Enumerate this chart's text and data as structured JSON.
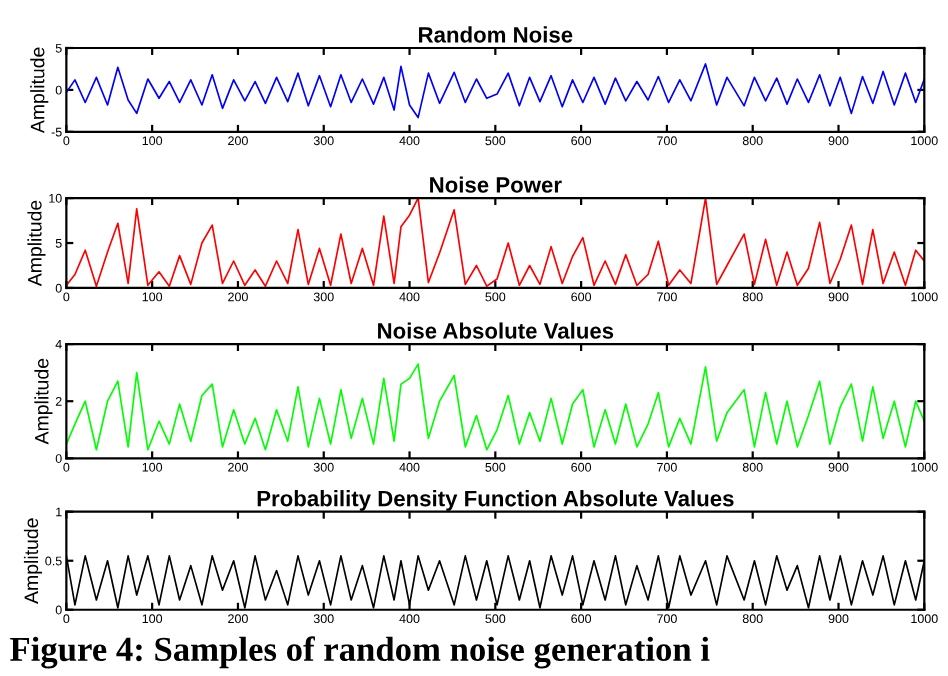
{
  "chart_data": [
    {
      "type": "line",
      "title": "Random Noise",
      "ylabel": "Amplitude",
      "xlim": [
        0,
        1000
      ],
      "xticks": [
        0,
        100,
        200,
        300,
        400,
        500,
        600,
        700,
        800,
        900,
        1000
      ],
      "ylim": [
        -5,
        5
      ],
      "yticks": [
        -5,
        0,
        5
      ],
      "legend": false,
      "x": [
        0,
        10,
        22,
        35,
        48,
        60,
        72,
        82,
        95,
        108,
        120,
        132,
        145,
        158,
        170,
        182,
        195,
        208,
        220,
        232,
        245,
        258,
        270,
        282,
        295,
        308,
        320,
        332,
        345,
        358,
        370,
        382,
        390,
        400,
        410,
        422,
        435,
        452,
        465,
        478,
        490,
        502,
        515,
        528,
        540,
        552,
        565,
        578,
        590,
        602,
        615,
        628,
        640,
        652,
        665,
        678,
        690,
        702,
        715,
        728,
        745,
        758,
        770,
        790,
        802,
        815,
        828,
        840,
        852,
        865,
        878,
        890,
        902,
        915,
        928,
        940,
        952,
        965,
        978,
        990,
        1000
      ],
      "series": [
        {
          "color": "#0000ff",
          "values": [
            -0.3,
            1.2,
            -1.5,
            1.5,
            -1.8,
            2.7,
            -1.2,
            -2.8,
            1.3,
            -1.0,
            1.0,
            -1.5,
            1.2,
            -1.8,
            1.8,
            -2.2,
            1.2,
            -1.3,
            1.0,
            -1.6,
            1.5,
            -1.4,
            2.0,
            -1.9,
            1.7,
            -2.0,
            1.8,
            -1.5,
            1.3,
            -1.7,
            1.5,
            -2.4,
            2.8,
            -1.8,
            -3.3,
            2.0,
            -1.6,
            2.1,
            -1.5,
            1.3,
            -1.0,
            -0.5,
            2.0,
            -1.9,
            1.5,
            -1.4,
            1.7,
            -2.0,
            1.2,
            -1.5,
            1.5,
            -1.7,
            1.4,
            -1.3,
            1.0,
            -1.2,
            1.6,
            -1.5,
            1.2,
            -1.3,
            3.1,
            -1.8,
            1.5,
            -1.9,
            1.5,
            -1.3,
            1.4,
            -1.7,
            1.3,
            -1.5,
            1.8,
            -1.9,
            1.5,
            -2.8,
            1.6,
            -1.6,
            2.2,
            -1.8,
            2.0,
            -1.5,
            1.3
          ]
        }
      ]
    },
    {
      "type": "line",
      "title": "Noise Power",
      "ylabel": "Amplitude",
      "xlim": [
        0,
        1000
      ],
      "xticks": [
        0,
        100,
        200,
        300,
        400,
        500,
        600,
        700,
        800,
        900,
        1000
      ],
      "ylim": [
        0,
        10
      ],
      "yticks": [
        0,
        5,
        10
      ],
      "legend": false,
      "x": [
        0,
        10,
        22,
        35,
        48,
        60,
        72,
        82,
        95,
        108,
        120,
        132,
        145,
        158,
        170,
        182,
        195,
        208,
        220,
        232,
        245,
        258,
        270,
        282,
        295,
        308,
        320,
        332,
        345,
        358,
        370,
        382,
        390,
        400,
        410,
        422,
        435,
        452,
        465,
        478,
        490,
        502,
        515,
        528,
        540,
        552,
        565,
        578,
        590,
        602,
        615,
        628,
        640,
        652,
        665,
        678,
        690,
        702,
        715,
        728,
        745,
        758,
        770,
        790,
        802,
        815,
        828,
        840,
        852,
        865,
        878,
        890,
        902,
        915,
        928,
        940,
        952,
        965,
        978,
        990,
        1000
      ],
      "series": [
        {
          "color": "#ff0000",
          "values": [
            0.3,
            1.5,
            4.2,
            0.2,
            4,
            7.2,
            0.5,
            8.8,
            0.3,
            1.8,
            0.2,
            3.6,
            0.4,
            5,
            7,
            0.5,
            3,
            0.3,
            2,
            0.2,
            3,
            0.5,
            6.5,
            0.4,
            4.4,
            0.3,
            6,
            0.5,
            4.4,
            0.3,
            8,
            0.5,
            6.8,
            8.1,
            10,
            0.6,
            3.9,
            8.7,
            0.4,
            2.5,
            0.2,
            1,
            5,
            0.3,
            2.5,
            0.4,
            4.6,
            0.5,
            3.5,
            5.6,
            0.3,
            3,
            0.4,
            3.7,
            0.3,
            1.5,
            5.2,
            0.3,
            2,
            0.5,
            10,
            0.4,
            2.5,
            6,
            0.4,
            5.4,
            0.3,
            4,
            0.3,
            2.2,
            7.3,
            0.5,
            3.2,
            7,
            0.4,
            6.5,
            0.5,
            4,
            0.3,
            4.2,
            3
          ]
        }
      ]
    },
    {
      "type": "line",
      "title": "Noise Absolute Values",
      "ylabel": "Amplitude",
      "xlim": [
        0,
        1000
      ],
      "xticks": [
        0,
        100,
        200,
        300,
        400,
        500,
        600,
        700,
        800,
        900,
        1000
      ],
      "ylim": [
        0,
        4
      ],
      "yticks": [
        0,
        2,
        4
      ],
      "legend": false,
      "x": [
        0,
        10,
        22,
        35,
        48,
        60,
        72,
        82,
        95,
        108,
        120,
        132,
        145,
        158,
        170,
        182,
        195,
        208,
        220,
        232,
        245,
        258,
        270,
        282,
        295,
        308,
        320,
        332,
        345,
        358,
        370,
        382,
        390,
        400,
        410,
        422,
        435,
        452,
        465,
        478,
        490,
        502,
        515,
        528,
        540,
        552,
        565,
        578,
        590,
        602,
        615,
        628,
        640,
        652,
        665,
        678,
        690,
        702,
        715,
        728,
        745,
        758,
        770,
        790,
        802,
        815,
        828,
        840,
        852,
        865,
        878,
        890,
        902,
        915,
        928,
        940,
        952,
        965,
        978,
        990,
        1000
      ],
      "series": [
        {
          "color": "#00ff00",
          "values": [
            0.5,
            1.2,
            2,
            0.3,
            2,
            2.7,
            0.4,
            3,
            0.3,
            1.3,
            0.5,
            1.9,
            0.6,
            2.2,
            2.6,
            0.4,
            1.7,
            0.5,
            1.4,
            0.3,
            1.7,
            0.6,
            2.5,
            0.4,
            2.1,
            0.5,
            2.4,
            0.7,
            2.1,
            0.5,
            2.8,
            0.6,
            2.6,
            2.8,
            3.3,
            0.7,
            2,
            2.9,
            0.4,
            1.5,
            0.3,
            1,
            2.2,
            0.5,
            1.6,
            0.6,
            2.1,
            0.5,
            1.9,
            2.4,
            0.4,
            1.7,
            0.5,
            1.9,
            0.4,
            1.2,
            2.3,
            0.4,
            1.4,
            0.5,
            3.2,
            0.6,
            1.6,
            2.4,
            0.4,
            2.3,
            0.5,
            2,
            0.4,
            1.5,
            2.7,
            0.5,
            1.8,
            2.6,
            0.6,
            2.5,
            0.7,
            2,
            0.4,
            2,
            1.3
          ]
        }
      ]
    },
    {
      "type": "line",
      "title": "Probability Density Function Absolute Values",
      "ylabel": "Amplitude",
      "xlim": [
        0,
        1000
      ],
      "xticks": [
        0,
        100,
        200,
        300,
        400,
        500,
        600,
        700,
        800,
        900,
        1000
      ],
      "ylim": [
        0,
        1
      ],
      "yticks": [
        0,
        0.5,
        1
      ],
      "legend": false,
      "annotations": [
        "Figure 4: Samples of random noise generation i"
      ],
      "x": [
        0,
        10,
        22,
        35,
        48,
        60,
        72,
        82,
        95,
        108,
        120,
        132,
        145,
        158,
        170,
        182,
        195,
        208,
        220,
        232,
        245,
        258,
        270,
        282,
        295,
        308,
        320,
        332,
        345,
        358,
        370,
        382,
        390,
        400,
        410,
        422,
        435,
        452,
        465,
        478,
        490,
        502,
        515,
        528,
        540,
        552,
        565,
        578,
        590,
        602,
        615,
        628,
        640,
        652,
        665,
        678,
        690,
        702,
        715,
        728,
        745,
        758,
        770,
        790,
        802,
        815,
        828,
        840,
        852,
        865,
        878,
        890,
        902,
        915,
        928,
        940,
        952,
        965,
        978,
        990,
        1000
      ],
      "series": [
        {
          "color": "#000000",
          "values": [
            0.55,
            0.05,
            0.55,
            0.1,
            0.5,
            0.02,
            0.55,
            0.15,
            0.55,
            0.05,
            0.55,
            0.1,
            0.45,
            0.05,
            0.55,
            0.2,
            0.5,
            0.02,
            0.55,
            0.1,
            0.4,
            0.05,
            0.55,
            0.15,
            0.5,
            0.05,
            0.55,
            0.1,
            0.45,
            0.02,
            0.55,
            0.1,
            0.5,
            0.05,
            0.55,
            0.2,
            0.5,
            0.05,
            0.55,
            0.1,
            0.5,
            0.05,
            0.55,
            0.1,
            0.5,
            0.02,
            0.55,
            0.15,
            0.55,
            0.05,
            0.5,
            0.1,
            0.55,
            0.05,
            0.45,
            0.1,
            0.55,
            0.02,
            0.55,
            0.15,
            0.5,
            0.05,
            0.55,
            0.1,
            0.5,
            0.05,
            0.55,
            0.2,
            0.45,
            0.02,
            0.55,
            0.1,
            0.55,
            0.05,
            0.5,
            0.15,
            0.55,
            0.05,
            0.5,
            0.1,
            0.5
          ]
        }
      ]
    }
  ]
}
